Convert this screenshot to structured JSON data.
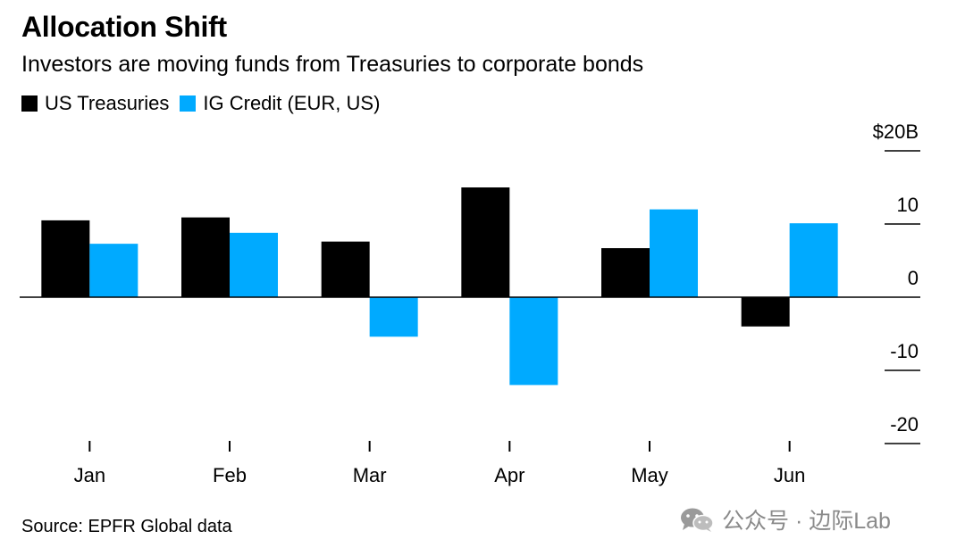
{
  "title": "Allocation Shift",
  "subtitle": "Investors are moving funds from Treasuries to corporate bonds",
  "legend": [
    {
      "name": "US Treasuries",
      "color": "#000000"
    },
    {
      "name": "IG Credit (EUR, US)",
      "color": "#00aaff"
    }
  ],
  "source": "Source: EPFR Global data",
  "watermark": {
    "icon": "wechat-icon",
    "text": "公众号 · 边际Lab"
  },
  "chart_data": {
    "type": "bar",
    "categories": [
      "Jan",
      "Feb",
      "Mar",
      "Apr",
      "May",
      "Jun"
    ],
    "series": [
      {
        "name": "US Treasuries",
        "color": "#000000",
        "values": [
          10.5,
          10.9,
          7.6,
          15.0,
          6.7,
          -4.0
        ]
      },
      {
        "name": "IG Credit (EUR, US)",
        "color": "#00aaff",
        "values": [
          7.3,
          8.8,
          -5.4,
          -12.0,
          12.0,
          10.1
        ]
      }
    ],
    "ylim": [
      -20,
      20
    ],
    "yticks": [
      20,
      10,
      0,
      -10,
      -20
    ],
    "ytick_labels": [
      "$20B",
      "10",
      "0",
      "-10",
      "-20"
    ],
    "y_axis_position": "right",
    "grid": false
  }
}
